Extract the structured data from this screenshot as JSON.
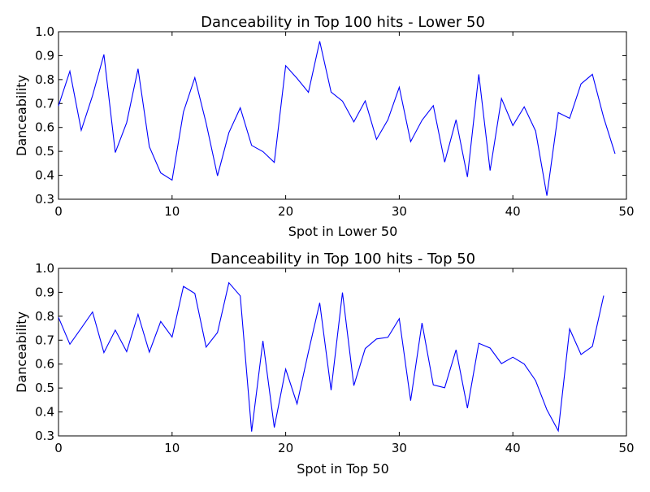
{
  "chart_data": [
    {
      "type": "line",
      "title": "Danceability in Top 100 hits - Lower 50",
      "xlabel": "Spot in Lower 50",
      "ylabel": "Danceability",
      "xlim": [
        0,
        50
      ],
      "ylim": [
        0.3,
        1.0
      ],
      "xticks": [
        "0",
        "10",
        "20",
        "30",
        "40",
        "50"
      ],
      "yticks": [
        "0.3",
        "0.4",
        "0.5",
        "0.6",
        "0.7",
        "0.8",
        "0.9",
        "1.0"
      ],
      "grid": false,
      "color": "#0000ff",
      "x": [
        0,
        1,
        2,
        3,
        4,
        5,
        6,
        7,
        8,
        9,
        10,
        11,
        12,
        13,
        14,
        15,
        16,
        17,
        18,
        19,
        20,
        21,
        22,
        23,
        24,
        25,
        26,
        27,
        28,
        29,
        30,
        31,
        32,
        33,
        34,
        35,
        36,
        37,
        38,
        39,
        40,
        41,
        42,
        43,
        44,
        45,
        46,
        47,
        48,
        49
      ],
      "y": [
        0.69,
        0.835,
        0.588,
        0.733,
        0.905,
        0.495,
        0.62,
        0.845,
        0.52,
        0.41,
        0.38,
        0.665,
        0.808,
        0.618,
        0.398,
        0.578,
        0.682,
        0.525,
        0.499,
        0.454,
        0.858,
        0.805,
        0.747,
        0.96,
        0.748,
        0.71,
        0.623,
        0.711,
        0.55,
        0.632,
        0.768,
        0.541,
        0.63,
        0.691,
        0.455,
        0.632,
        0.393,
        0.822,
        0.42,
        0.721,
        0.608,
        0.686,
        0.585,
        0.315,
        0.662,
        0.638,
        0.782,
        0.822,
        0.641,
        0.49
      ]
    },
    {
      "type": "line",
      "title": "Danceability in Top 100 hits - Top 50",
      "xlabel": "Spot in Top 50",
      "ylabel": "Danceability",
      "xlim": [
        0,
        50
      ],
      "ylim": [
        0.3,
        1.0
      ],
      "xticks": [
        "0",
        "10",
        "20",
        "30",
        "40",
        "50"
      ],
      "yticks": [
        "0.3",
        "0.4",
        "0.5",
        "0.6",
        "0.7",
        "0.8",
        "0.9",
        "1.0"
      ],
      "grid": false,
      "color": "#0000ff",
      "x": [
        0,
        1,
        2,
        3,
        4,
        5,
        6,
        7,
        8,
        9,
        10,
        11,
        12,
        13,
        14,
        15,
        16,
        17,
        18,
        19,
        20,
        21,
        22,
        23,
        24,
        25,
        26,
        27,
        28,
        29,
        30,
        31,
        32,
        33,
        34,
        35,
        36,
        37,
        38,
        39,
        40,
        41,
        42,
        43,
        44,
        45,
        46,
        47,
        48
      ],
      "y": [
        0.795,
        0.683,
        0.75,
        0.818,
        0.648,
        0.742,
        0.652,
        0.808,
        0.65,
        0.778,
        0.713,
        0.925,
        0.895,
        0.671,
        0.732,
        0.94,
        0.885,
        0.318,
        0.697,
        0.335,
        0.579,
        0.434,
        0.651,
        0.856,
        0.491,
        0.899,
        0.51,
        0.665,
        0.705,
        0.712,
        0.79,
        0.447,
        0.772,
        0.513,
        0.501,
        0.66,
        0.416,
        0.687,
        0.667,
        0.602,
        0.629,
        0.6,
        0.531,
        0.409,
        0.321,
        0.747,
        0.64,
        0.674,
        0.886
      ]
    }
  ]
}
